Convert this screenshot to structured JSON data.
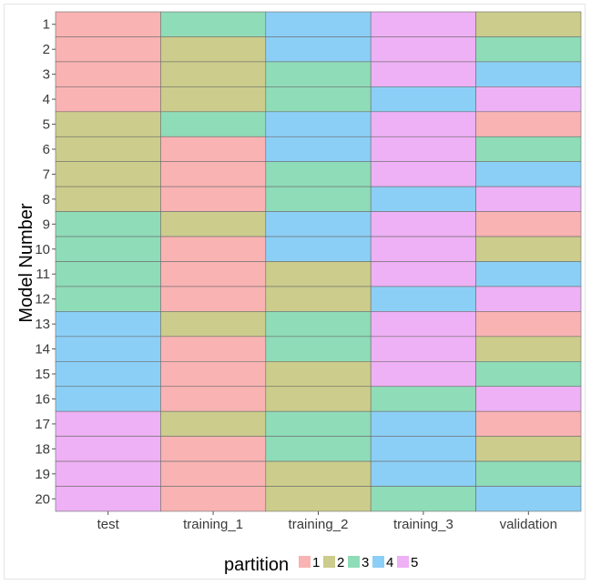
{
  "chart_data": {
    "type": "heatmap",
    "title": "",
    "xlabel": "",
    "ylabel": "Model Number",
    "x_categories": [
      "test",
      "training_1",
      "training_2",
      "training_3",
      "validation"
    ],
    "y_categories": [
      "1",
      "2",
      "3",
      "4",
      "5",
      "6",
      "7",
      "8",
      "9",
      "10",
      "11",
      "12",
      "13",
      "14",
      "15",
      "16",
      "17",
      "18",
      "19",
      "20"
    ],
    "values": [
      [
        1,
        3,
        4,
        5,
        2
      ],
      [
        1,
        2,
        4,
        5,
        3
      ],
      [
        1,
        2,
        3,
        5,
        4
      ],
      [
        1,
        2,
        3,
        4,
        5
      ],
      [
        2,
        3,
        4,
        5,
        1
      ],
      [
        2,
        1,
        4,
        5,
        3
      ],
      [
        2,
        1,
        3,
        5,
        4
      ],
      [
        2,
        1,
        3,
        4,
        5
      ],
      [
        3,
        2,
        4,
        5,
        1
      ],
      [
        3,
        1,
        4,
        5,
        2
      ],
      [
        3,
        1,
        2,
        5,
        4
      ],
      [
        3,
        1,
        2,
        4,
        5
      ],
      [
        4,
        2,
        3,
        5,
        1
      ],
      [
        4,
        1,
        3,
        5,
        2
      ],
      [
        4,
        1,
        2,
        5,
        3
      ],
      [
        4,
        1,
        2,
        3,
        5
      ],
      [
        5,
        2,
        3,
        4,
        1
      ],
      [
        5,
        1,
        3,
        4,
        2
      ],
      [
        5,
        1,
        2,
        4,
        3
      ],
      [
        5,
        1,
        2,
        3,
        4
      ]
    ],
    "legend": {
      "title": "partition",
      "position": "bottom",
      "entries": [
        {
          "label": "1",
          "color": "#f9b3b3"
        },
        {
          "label": "2",
          "color": "#cccc8c"
        },
        {
          "label": "3",
          "color": "#8fdcb8"
        },
        {
          "label": "4",
          "color": "#8ccff6"
        },
        {
          "label": "5",
          "color": "#eeb1f5"
        }
      ]
    },
    "grid": false
  }
}
